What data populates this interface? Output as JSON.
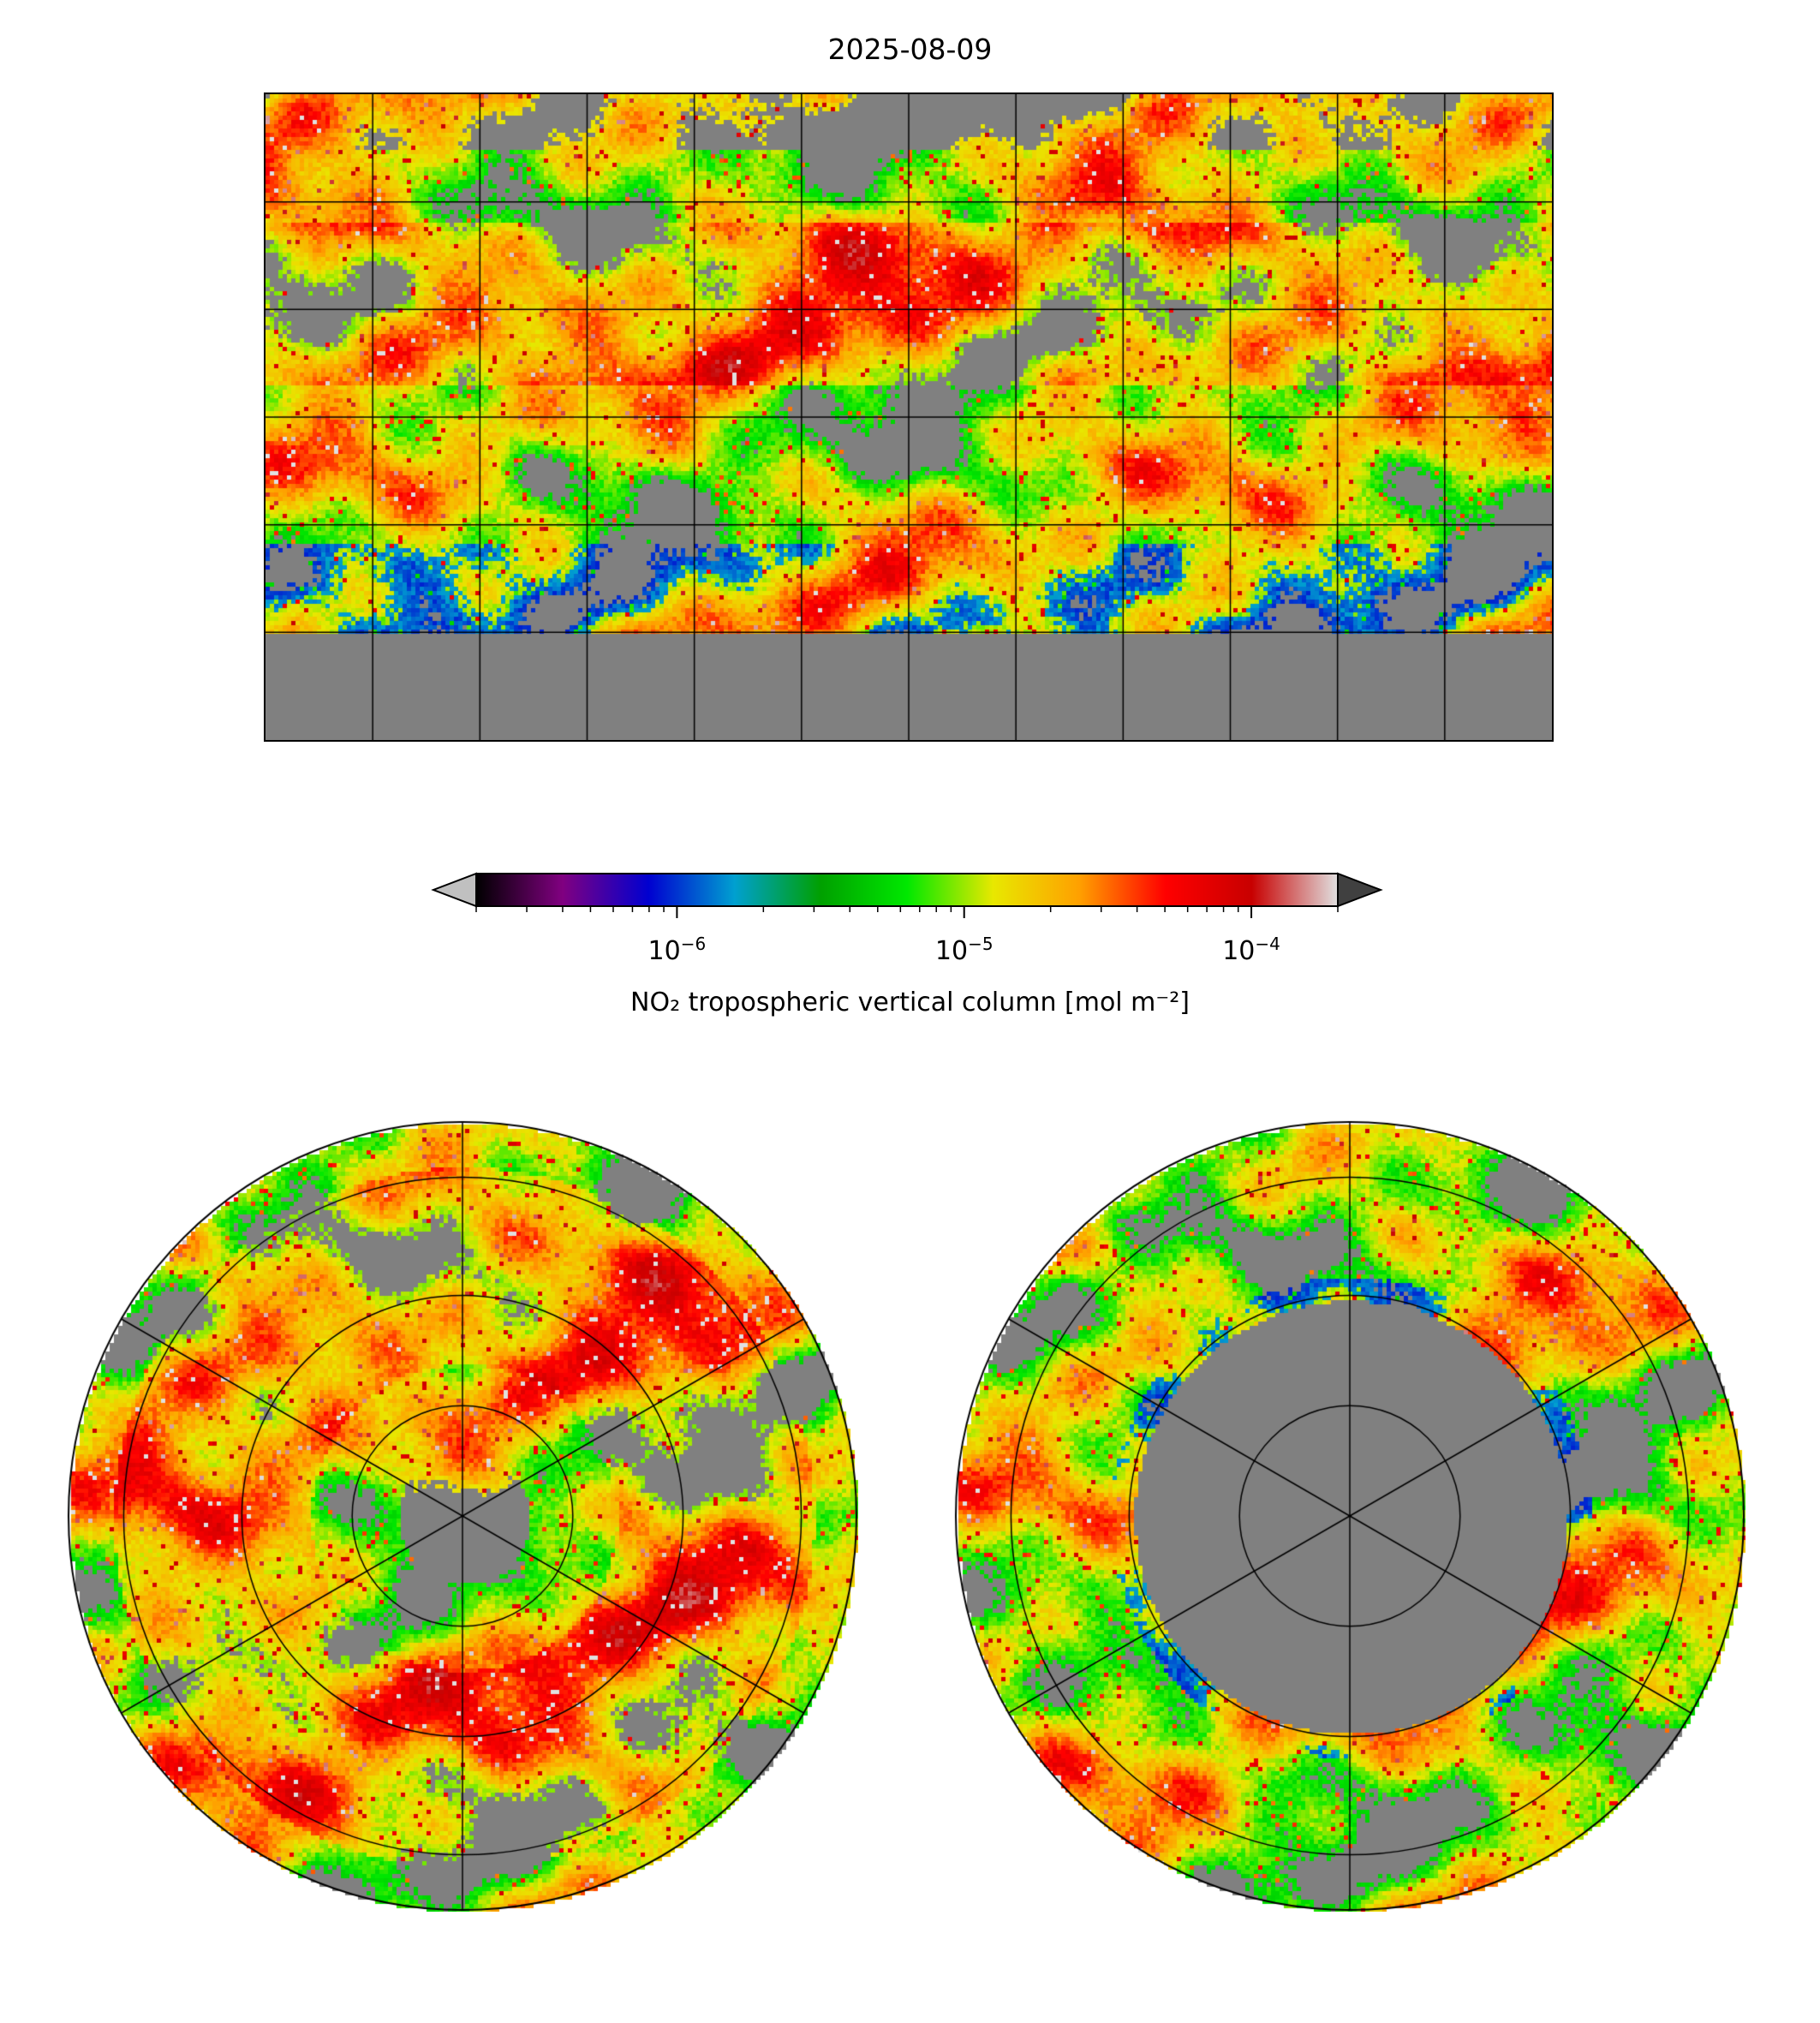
{
  "title": "2025-08-09",
  "chart_data": {
    "type": "heatmap",
    "title": "2025-08-09",
    "panels": [
      "global equirectangular map",
      "north polar stereographic map",
      "south polar stereographic map"
    ],
    "gridlines": {
      "longitude_step_deg": 30,
      "latitude_step_deg": 30
    },
    "colorbar": {
      "label": "NO₂ tropospheric vertical column [mol m⁻²]",
      "scale": "log",
      "range": [
        2e-07,
        0.0002
      ],
      "extend": "both",
      "ticks": [
        {
          "value": 1e-06,
          "base": "10",
          "exp": "−6"
        },
        {
          "value": 1e-05,
          "base": "10",
          "exp": "−5"
        },
        {
          "value": 0.0001,
          "base": "10",
          "exp": "−4"
        }
      ],
      "colors": [
        "#000000",
        "#800080",
        "#0000d0",
        "#00a0d0",
        "#00a000",
        "#00e800",
        "#e8e800",
        "#ffa000",
        "#ff0000",
        "#c80000",
        "#e0e0e0"
      ],
      "under_color": "#c0c0c0",
      "over_color": "#404040",
      "nodata_color": "#808080"
    }
  }
}
